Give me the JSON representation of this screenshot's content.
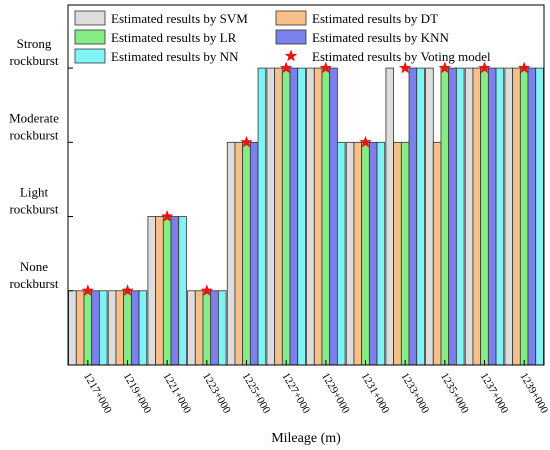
{
  "chart_data": {
    "type": "bar",
    "title": "",
    "xlabel": "Mileage (m)",
    "ylabel": "",
    "categories": [
      "1217+000",
      "1219+000",
      "1221+000",
      "1223+000",
      "1225+000",
      "1227+000",
      "1229+000",
      "1231+000",
      "1233+000",
      "1235+000",
      "1237+000",
      "1239+000"
    ],
    "y_tick_labels": [
      {
        "value": 1,
        "line1": "None",
        "line2": "rockburst"
      },
      {
        "value": 2,
        "line1": "Light",
        "line2": "rockburst"
      },
      {
        "value": 3,
        "line1": "Moderate",
        "line2": "rockburst"
      },
      {
        "value": 4,
        "line1": "Strong",
        "line2": "rockburst"
      }
    ],
    "ylim": [
      0,
      4.85
    ],
    "legend_position": "top, two columns",
    "series": [
      {
        "name": "Estimated results by SVM",
        "color": "#dddddd",
        "values": [
          1,
          1,
          2,
          1,
          3,
          4,
          4,
          3,
          4,
          4,
          4,
          4
        ]
      },
      {
        "name": "Estimated results by DT",
        "color": "#f7c08a",
        "values": [
          1,
          1,
          2,
          1,
          3,
          4,
          4,
          3,
          3,
          3,
          4,
          4
        ]
      },
      {
        "name": "Estimated results by LR",
        "color": "#86ec86",
        "values": [
          1,
          1,
          2,
          1,
          3,
          4,
          4,
          3,
          3,
          4,
          4,
          4
        ]
      },
      {
        "name": "Estimated results by KNN",
        "color": "#7b80ec",
        "values": [
          1,
          1,
          2,
          1,
          3,
          4,
          4,
          3,
          4,
          4,
          4,
          4
        ]
      },
      {
        "name": "Estimated results by NN",
        "color": "#80f4f4",
        "values": [
          1,
          1,
          2,
          1,
          4,
          4,
          3,
          3,
          4,
          4,
          4,
          4
        ]
      }
    ],
    "voting": {
      "name": "Estimated results by Voting model",
      "color": "#ee1111",
      "marker": "star",
      "values": [
        1,
        1,
        2,
        1,
        3,
        4,
        4,
        3,
        4,
        4,
        4,
        4
      ]
    }
  }
}
